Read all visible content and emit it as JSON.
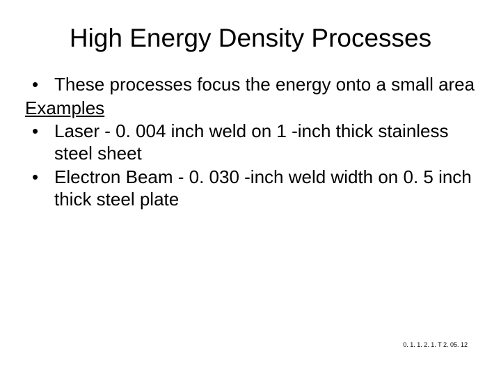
{
  "slide": {
    "title": "High Energy Density Processes",
    "bullets": [
      "These processes focus the energy onto a small area"
    ],
    "examples_label": "Examples",
    "example_bullets": [
      "Laser - 0. 004 inch weld on 1 -inch thick stainless steel sheet",
      "Electron Beam - 0. 030 -inch weld width on 0. 5 inch thick steel plate"
    ],
    "footer_code": "0. 1. 1. 2. 1. T 2. 05. 12",
    "colors": {
      "background": "#ffffff",
      "text": "#000000"
    },
    "typography": {
      "title_fontsize": 37,
      "body_fontsize": 26,
      "footer_fontsize": 9,
      "font_family": "Arial"
    }
  }
}
